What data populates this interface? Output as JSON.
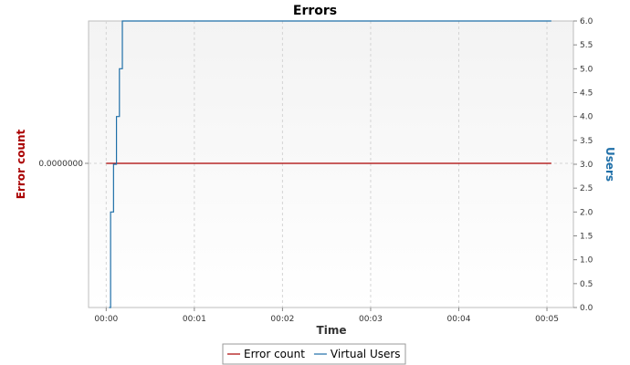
{
  "chart_data": {
    "type": "line",
    "title": "Errors",
    "xlabel": "Time",
    "ylabel_left": "Error count",
    "ylabel_right": "Users",
    "x_ticks": [
      "00:00",
      "00:01",
      "00:02",
      "00:03",
      "00:04",
      "00:05"
    ],
    "left_ticks": [
      {
        "value": 0,
        "label": "0.0000000"
      }
    ],
    "right_ticks": [
      "0.0",
      "0.5",
      "1.0",
      "1.5",
      "2.0",
      "2.5",
      "3.0",
      "3.5",
      "4.0",
      "4.5",
      "5.0",
      "5.5",
      "6.0"
    ],
    "right_ylim": [
      0,
      6.0
    ],
    "xlim_seconds": [
      -12,
      318
    ],
    "grid": true,
    "legend_position": "bottom",
    "series": [
      {
        "name": "Error count",
        "axis": "left",
        "color": "#aa0000",
        "step": false,
        "points": [
          [
            0,
            0
          ],
          [
            303,
            0
          ]
        ]
      },
      {
        "name": "Virtual Users",
        "axis": "right",
        "color": "#1f6fa8",
        "step": true,
        "points": [
          [
            2,
            0
          ],
          [
            3,
            2
          ],
          [
            5,
            3
          ],
          [
            7,
            4
          ],
          [
            9,
            5
          ],
          [
            11,
            6
          ],
          [
            303,
            6
          ]
        ]
      }
    ]
  }
}
